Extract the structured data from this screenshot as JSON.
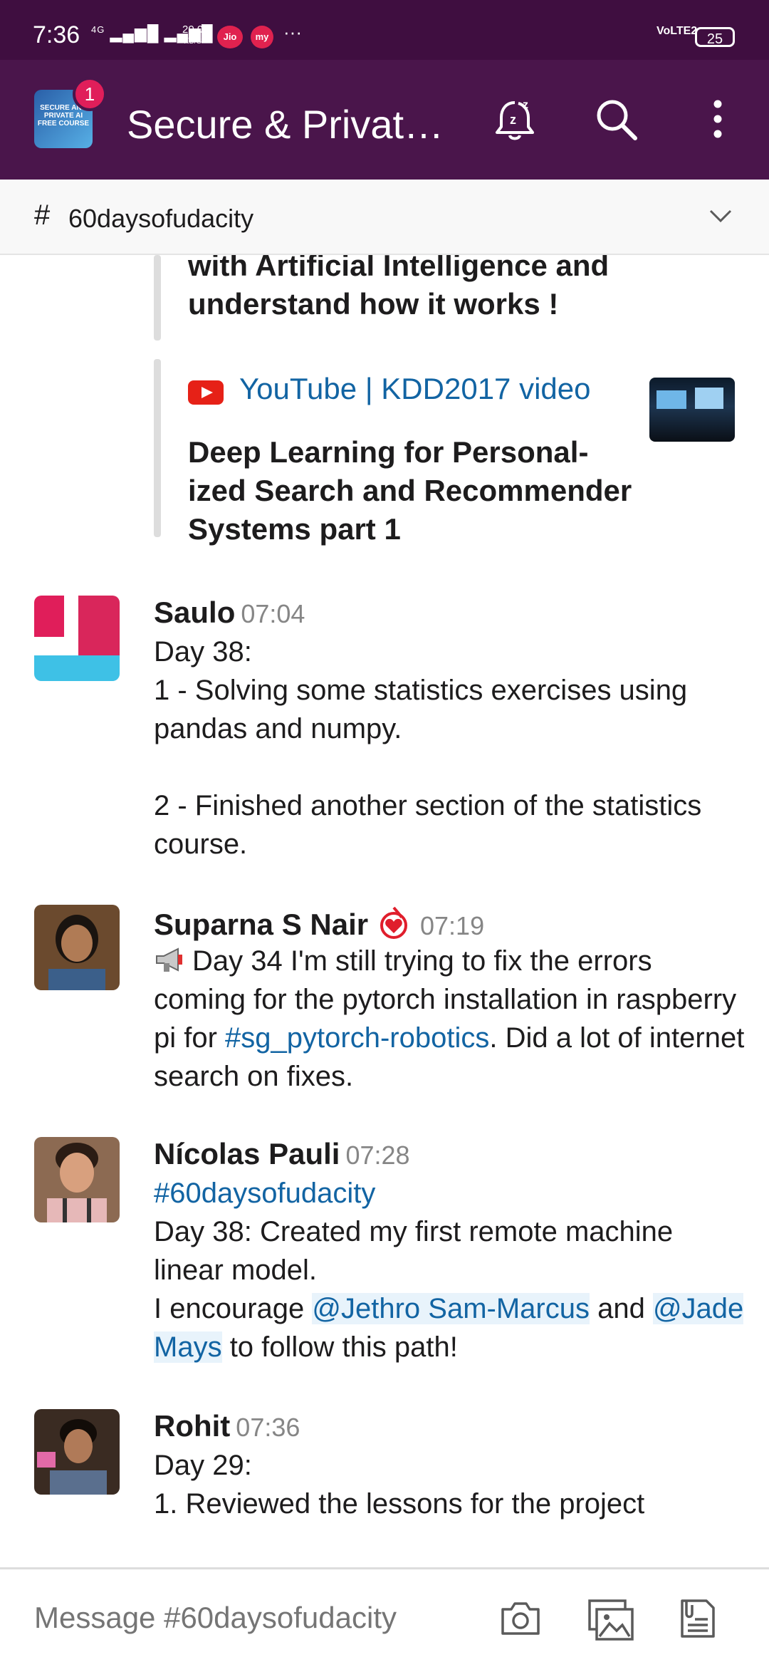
{
  "status_bar": {
    "time": "7:36",
    "network": "4G",
    "speed_value": "20.0",
    "speed_unit": "KB/S",
    "jio_label": "Jio",
    "my_label": "my",
    "more": "···",
    "volte": "VoLTE2",
    "battery": "25"
  },
  "app_bar": {
    "workspace_icon_text": "SECURE AND PRIVATE AI FREE COURSE",
    "badge_count": "1",
    "title": "Secure & Privat…",
    "icons": [
      "snooze-bell-icon",
      "search-icon",
      "more-vert-icon"
    ]
  },
  "channel": {
    "hash": "#",
    "name": "60daysofudacity"
  },
  "attachment_1": {
    "text": "with Artificial Intelligence and understand how it works !"
  },
  "attachment_2": {
    "source": "YouTube | KDD2017 video",
    "title": "Deep Learning for Personal-ized Search and Recommender Systems part 1",
    "source_icon": "youtube-icon"
  },
  "messages": [
    {
      "name": "Saulo",
      "time": "07:04",
      "line1": "Day 38:",
      "line2": "1 - Solving some statistics exercises using pandas and numpy.",
      "line3": "2 - Finished another section of the statistics course."
    },
    {
      "name": "Suparna S Nair",
      "time": "07:19",
      "emoji": "megaphone-icon",
      "status_icon": "heart-status-icon",
      "text_before": "Day 34 I'm still trying to fix the errors coming for the pytorch installation in raspberry pi for ",
      "channel_link": "#sg_pytorch-robotics",
      "text_after": ". Did a lot of internet search on fixes."
    },
    {
      "name": "Nícolas Pauli",
      "time": "07:28",
      "channel_link": "#60daysofudacity",
      "line1": "Day 38: Created my first remote machine linear model.",
      "encourage": "I encourage ",
      "mention1": "@Jethro Sam-Marcus",
      "and": " and ",
      "mention2": "@Jade Mays",
      "end": " to follow this path!"
    },
    {
      "name": "Rohit",
      "time": "07:36",
      "line1": "Day 29:",
      "line2": "1. Reviewed the lessons for the project"
    }
  ],
  "composer": {
    "placeholder": "Message #60daysofudacity",
    "icons": [
      "camera-icon",
      "gallery-icon",
      "files-icon"
    ]
  }
}
